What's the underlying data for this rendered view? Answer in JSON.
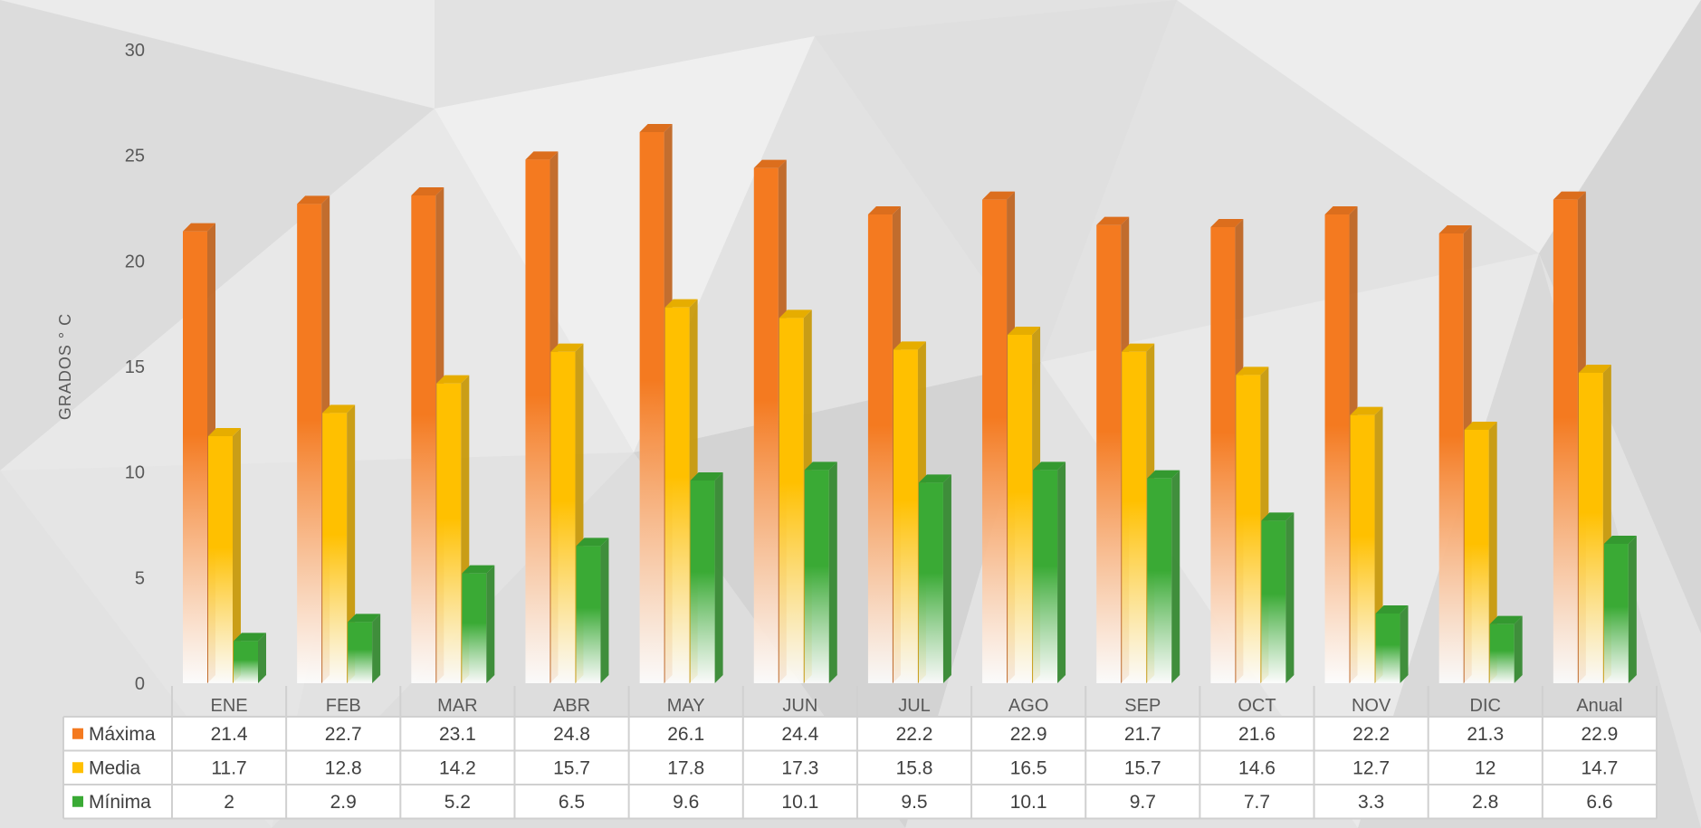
{
  "chart_data": {
    "type": "bar",
    "title": "",
    "xlabel": "",
    "ylabel": "GRADOS ° C",
    "ylim": [
      0,
      30
    ],
    "yticks": [
      0,
      5,
      10,
      15,
      20,
      25,
      30
    ],
    "grid": false,
    "legend": "data-table",
    "categories": [
      "ENE",
      "FEB",
      "MAR",
      "ABR",
      "MAY",
      "JUN",
      "JUL",
      "AGO",
      "SEP",
      "OCT",
      "NOV",
      "DIC",
      "Anual"
    ],
    "series": [
      {
        "name": "Máxima",
        "color": "#F47A20",
        "values": [
          21.4,
          22.7,
          23.1,
          24.8,
          26.1,
          24.4,
          22.2,
          22.9,
          21.7,
          21.6,
          22.2,
          21.3,
          22.9
        ]
      },
      {
        "name": "Media",
        "color": "#FFC000",
        "values": [
          11.7,
          12.8,
          14.2,
          15.7,
          17.8,
          17.3,
          15.8,
          16.5,
          15.7,
          14.6,
          12.7,
          12,
          14.7
        ]
      },
      {
        "name": "Mínima",
        "color": "#3AAA35",
        "values": [
          2,
          2.9,
          5.2,
          6.5,
          9.6,
          10.1,
          9.5,
          10.1,
          9.7,
          7.7,
          3.3,
          2.8,
          6.6
        ]
      }
    ]
  }
}
